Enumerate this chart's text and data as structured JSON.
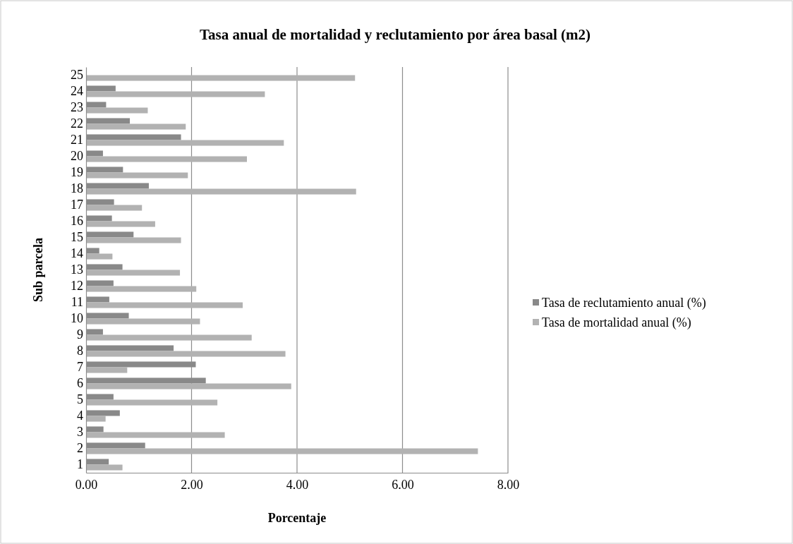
{
  "chart_data": {
    "type": "bar",
    "orientation": "horizontal",
    "title": "Tasa anual de mortalidad y reclutamiento por área basal (m2)",
    "xlabel": "Porcentaje",
    "ylabel": "Sub parcela",
    "categories": [
      "25",
      "24",
      "23",
      "22",
      "21",
      "20",
      "19",
      "18",
      "17",
      "16",
      "15",
      "14",
      "13",
      "12",
      "11",
      "10",
      "9",
      "8",
      "7",
      "6",
      "5",
      "4",
      "3",
      "2",
      "1"
    ],
    "series": [
      {
        "name": "Tasa de reclutamiento anual (%)",
        "color": "#898989",
        "values": [
          0,
          0.56,
          0.38,
          0.83,
          1.8,
          0.32,
          0.7,
          1.19,
          0.53,
          0.49,
          0.9,
          0.25,
          0.69,
          0.52,
          0.44,
          0.81,
          0.32,
          1.66,
          2.08,
          2.27,
          0.52,
          0.64,
          0.33,
          1.12,
          0.43
        ]
      },
      {
        "name": "Tasa de mortalidad anual (%)",
        "color": "#b2b2b2",
        "values": [
          5.1,
          3.39,
          1.17,
          1.89,
          3.75,
          3.05,
          1.93,
          5.12,
          1.06,
          1.31,
          1.8,
          0.5,
          1.78,
          2.09,
          2.97,
          2.16,
          3.14,
          3.78,
          0.78,
          3.89,
          2.49,
          0.37,
          2.63,
          7.43,
          0.69
        ]
      }
    ],
    "xlim": [
      0,
      8
    ],
    "xticks": [
      {
        "value": 0,
        "label": "0.00"
      },
      {
        "value": 2,
        "label": "2.00"
      },
      {
        "value": 4,
        "label": "4.00"
      },
      {
        "value": 6,
        "label": "6.00"
      },
      {
        "value": 8,
        "label": "8.00"
      }
    ],
    "grid": "x",
    "legend": "right"
  }
}
